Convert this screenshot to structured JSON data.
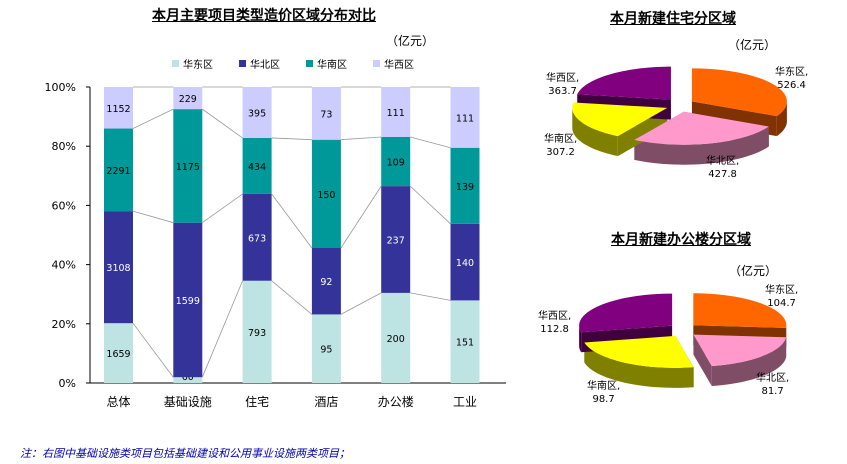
{
  "chart_data": [
    {
      "type": "bar",
      "stacked": "percent",
      "title": "本月主要项目类型造价区域分布对比",
      "unit": "（亿元）",
      "categories": [
        "总体",
        "基础设施",
        "住宅",
        "酒店",
        "办公楼",
        "工业"
      ],
      "yticks": [
        "0%",
        "20%",
        "40%",
        "60%",
        "80%",
        "100%"
      ],
      "ylim": [
        0,
        100
      ],
      "legend_position": "top",
      "series": [
        {
          "name": "华东区",
          "color": "#BEE3E3",
          "values": [
            1659,
            60,
            793,
            95,
            200,
            151
          ]
        },
        {
          "name": "华北区",
          "color": "#333399",
          "values": [
            3108,
            1599,
            673,
            92,
            237,
            140
          ]
        },
        {
          "name": "华南区",
          "color": "#009999",
          "values": [
            2291,
            1175,
            434,
            150,
            109,
            139
          ]
        },
        {
          "name": "华西区",
          "color": "#CCCCFF",
          "values": [
            1152,
            229,
            395,
            73,
            111,
            111
          ]
        }
      ]
    },
    {
      "type": "pie",
      "title": "本月新建住宅分区域",
      "unit": "（亿元）",
      "slices": [
        {
          "name": "华东区",
          "value": 526.4,
          "label": "526.4",
          "color": "#FF6600",
          "side": "#803300"
        },
        {
          "name": "华北区",
          "value": 427.8,
          "label": "427.8",
          "color": "#FF99CC",
          "side": "#804D66"
        },
        {
          "name": "华南区",
          "value": 307.2,
          "label": "307.2",
          "color": "#FFFF00",
          "side": "#808000"
        },
        {
          "name": "华西区",
          "value": 363.7,
          "label": "363.7",
          "color": "#800080",
          "side": "#400040"
        }
      ]
    },
    {
      "type": "pie",
      "title": "本月新建办公楼分区域",
      "unit": "（亿元）",
      "slices": [
        {
          "name": "华东区",
          "value": 104.7,
          "label": "104.7",
          "color": "#FF6600",
          "side": "#803300"
        },
        {
          "name": "华北区",
          "value": 81.7,
          "label": "81.7",
          "color": "#FF99CC",
          "side": "#804D66"
        },
        {
          "name": "华南区",
          "value": 98.7,
          "label": "98.7",
          "color": "#FFFF00",
          "side": "#808000"
        },
        {
          "name": "华西区",
          "value": 112.8,
          "label": "112.8",
          "color": "#800080",
          "side": "#400040"
        }
      ]
    }
  ],
  "note": "注：右图中基础设施类项目包括基础建设和公用事业设施两类项目；"
}
